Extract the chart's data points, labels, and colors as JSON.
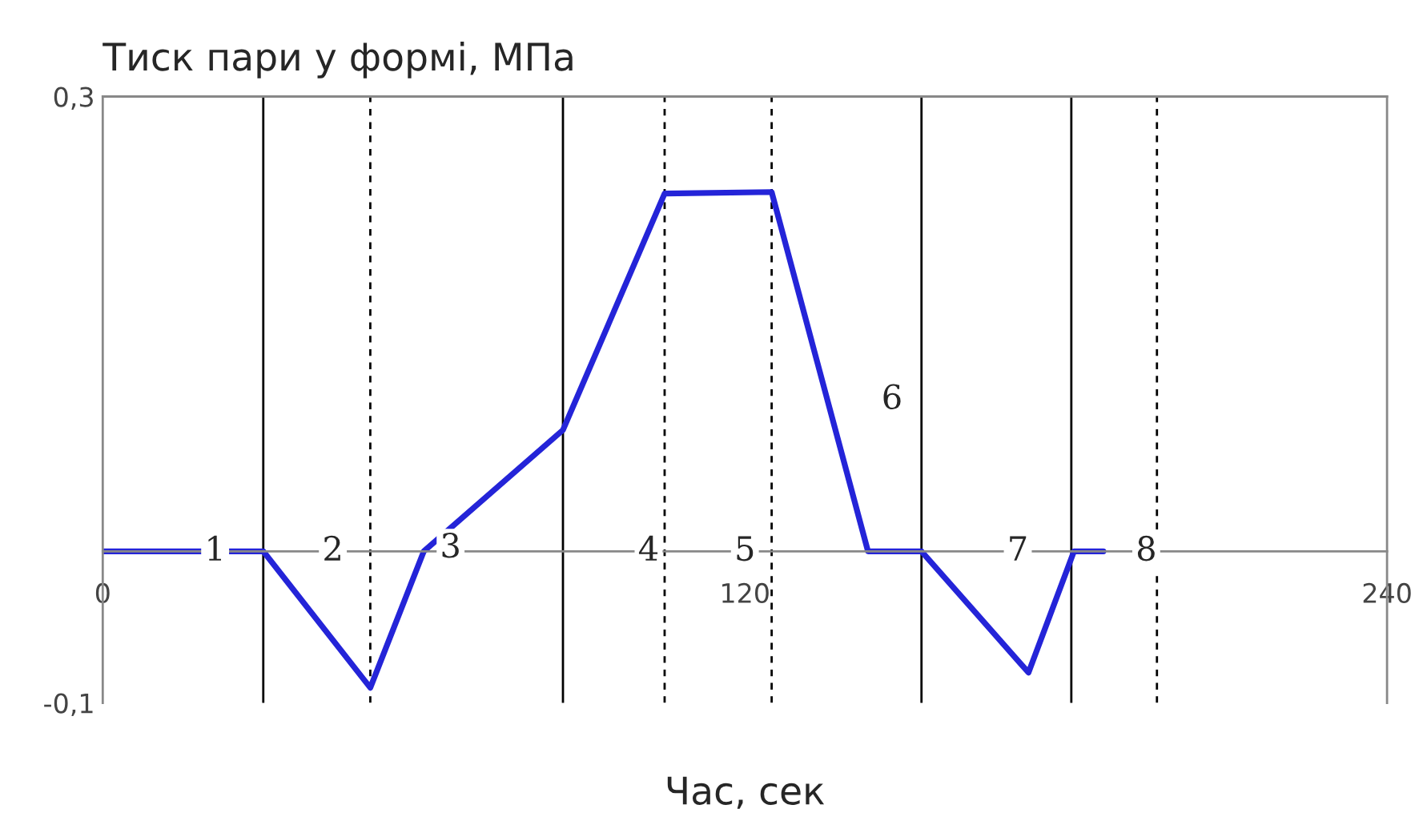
{
  "chart_data": {
    "type": "line",
    "ylabel": "Тиск пари у формі, МПа",
    "xlabel": "Час, сек",
    "x": [
      0,
      30,
      50,
      60,
      86,
      105,
      125,
      143,
      153,
      173,
      181.5,
      187
    ],
    "series": [
      {
        "color": "#2424d8",
        "values": [
          0,
          0,
          -0.09,
          0,
          0.08,
          0.236,
          0.237,
          0,
          0,
          -0.08,
          0,
          0
        ]
      }
    ],
    "xlim": [
      0,
      240
    ],
    "xticks": [
      0,
      120,
      240
    ],
    "ylim": [
      -0.1,
      0.3
    ],
    "yticks": [
      {
        "value": -0.1,
        "label": "-0,1"
      },
      {
        "value": 0.3,
        "label": "0,3"
      }
    ],
    "ref_lines": [
      {
        "axis": "x",
        "value": 30,
        "line_style": "solid",
        "color": "#000000"
      },
      {
        "axis": "x",
        "value": 50,
        "line_style": "dashed",
        "color": "#000000"
      },
      {
        "axis": "x",
        "value": 86,
        "line_style": "solid",
        "color": "#000000"
      },
      {
        "axis": "x",
        "value": 105,
        "line_style": "dashed",
        "color": "#000000"
      },
      {
        "axis": "x",
        "value": 125,
        "line_style": "dashed",
        "color": "#000000"
      },
      {
        "axis": "x",
        "value": 153,
        "line_style": "solid",
        "color": "#000000"
      },
      {
        "axis": "x",
        "value": 181,
        "line_style": "solid",
        "color": "#000000"
      },
      {
        "axis": "x",
        "value": 197,
        "line_style": "dashed",
        "color": "#000000"
      }
    ],
    "annotations": [
      {
        "text": "1",
        "x": 21,
        "y": 0
      },
      {
        "text": "2",
        "x": 43,
        "y": 0
      },
      {
        "text": "3",
        "x": 65,
        "y": 0.002
      },
      {
        "text": "4",
        "x": 102,
        "y": 0
      },
      {
        "text": "5",
        "x": 120,
        "y": 0
      },
      {
        "text": "6",
        "x": 147.5,
        "y": 0.1
      },
      {
        "text": "7",
        "x": 171,
        "y": 0
      },
      {
        "text": "8",
        "x": 195,
        "y": 0
      }
    ],
    "grid": false,
    "legend": false,
    "marker": "none",
    "line_style": "solid"
  }
}
